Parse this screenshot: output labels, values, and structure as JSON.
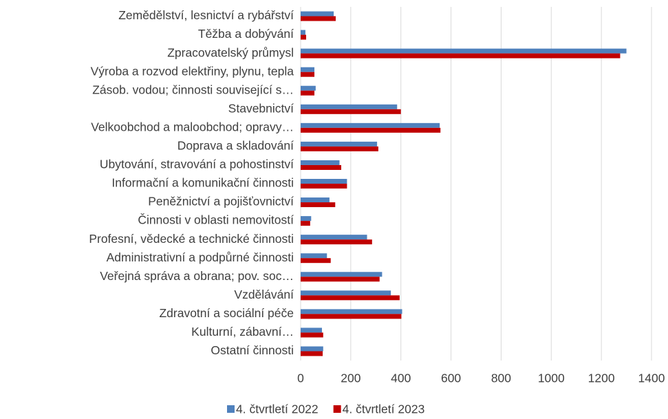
{
  "chart_data": {
    "type": "bar",
    "orientation": "horizontal",
    "categories": [
      "Zemědělství, lesnictví a rybářství",
      "Těžba a dobývání",
      "Zpracovatelský průmysl",
      "Výroba a rozvod elektřiny, plynu, tepla",
      "Zásob. vodou; činnosti související s…",
      "Stavebnictví",
      "Velkoobchod a maloobchod; opravy…",
      "Doprava a skladování",
      "Ubytování, stravování a pohostinství",
      "Informační a komunikační činnosti",
      "Peněžnictví a pojišťovnictví",
      "Činnosti v oblasti nemovitostí",
      "Profesní, vědecké a technické činnosti",
      "Administrativní a podpůrné činnosti",
      "Veřejná správa a obrana; pov. soc…",
      "Vzdělávání",
      "Zdravotní a sociální péče",
      "Kulturní, zábavní…",
      "Ostatní činnosti"
    ],
    "series": [
      {
        "name": "4. čtvrtletí 2022",
        "color": "#4f81bd",
        "values": [
          132,
          19,
          1300,
          55,
          60,
          385,
          555,
          305,
          155,
          185,
          115,
          42,
          265,
          105,
          325,
          360,
          405,
          85,
          90
        ]
      },
      {
        "name": "4. čtvrtletí 2023",
        "color": "#c00000",
        "values": [
          140,
          22,
          1275,
          55,
          55,
          400,
          558,
          310,
          162,
          185,
          138,
          38,
          285,
          120,
          315,
          395,
          402,
          90,
          88
        ]
      }
    ],
    "xlim": [
      0,
      1400
    ],
    "xticks": [
      0,
      200,
      400,
      600,
      800,
      1000,
      1200,
      1400
    ],
    "grid": true,
    "legend": "bottom"
  }
}
